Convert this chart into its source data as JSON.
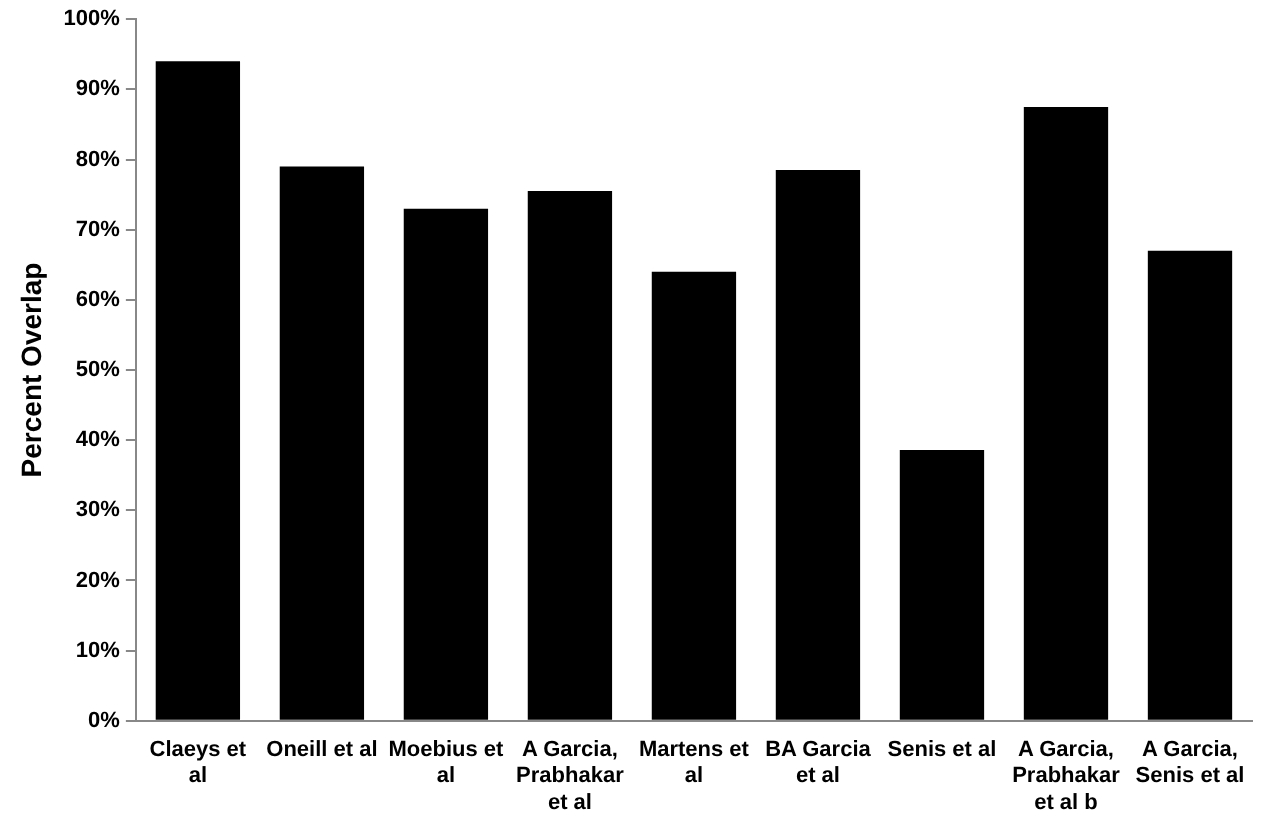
{
  "chart_data": {
    "type": "bar",
    "ylabel": "Percent Overlap",
    "categories": [
      "Claeys et al",
      "Oneill et al",
      "Moebius et al",
      "A Garcia, Prabhakar et al",
      "Martens et al",
      "BA Garcia et al",
      "Senis et al",
      "A Garcia, Prabhakar et al b",
      "A Garcia, Senis et al"
    ],
    "values": [
      94,
      79,
      73,
      75.5,
      64,
      78.5,
      38.6,
      87.5,
      67
    ],
    "color": "#000000",
    "ylim": [
      0,
      100
    ],
    "yticks": [
      {
        "value": 0,
        "label": "0%"
      },
      {
        "value": 10,
        "label": "10%"
      },
      {
        "value": 20,
        "label": "20%"
      },
      {
        "value": 30,
        "label": "30%"
      },
      {
        "value": 40,
        "label": "40%"
      },
      {
        "value": 50,
        "label": "50%"
      },
      {
        "value": 60,
        "label": "60%"
      },
      {
        "value": 70,
        "label": "70%"
      },
      {
        "value": 80,
        "label": "80%"
      },
      {
        "value": 90,
        "label": "90%"
      },
      {
        "value": 100,
        "label": "100%"
      }
    ],
    "grid": false,
    "legend": false
  }
}
